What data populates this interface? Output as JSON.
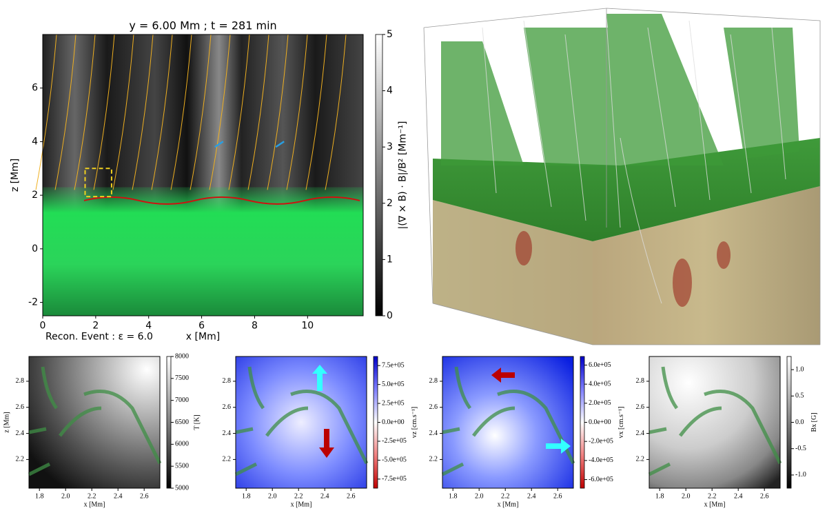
{
  "chart_data": [
    {
      "type": "heatmap",
      "title": "y = 6.00 Mm ; t = 281 min",
      "xlabel": "x [Mm]",
      "ylabel": "z [Mm]",
      "xlim": [
        0,
        12.1
      ],
      "ylim": [
        -2.5,
        8
      ],
      "xticks": [
        0,
        2,
        4,
        6,
        8,
        10
      ],
      "yticks": [
        -2,
        0,
        2,
        4,
        6
      ],
      "annotation": "Recon. Event : ε = 6.0",
      "colorbar": {
        "label": "|(∇ × B) · B|/B² [Mm⁻¹]",
        "colormap": "gray",
        "lim": [
          0,
          5
        ],
        "ticks": [
          0,
          1,
          2,
          3,
          4,
          5
        ]
      }
    },
    {
      "type": "heatmap",
      "xlabel": "x [Mm]",
      "ylabel": "z [Mm]",
      "xlim": [
        1.72,
        2.72
      ],
      "ylim": [
        1.98,
        2.99
      ],
      "xticks": [
        1.8,
        {
          "value": 2,
          "label": "2.0"
        },
        2.2,
        2.4,
        2.6
      ],
      "yticks": [
        2.2,
        2.4,
        2.6,
        2.8
      ],
      "colorbar": {
        "label": "T [K]",
        "colormap": "gray",
        "lim": [
          5000,
          8000
        ],
        "ticks": [
          5000,
          5500,
          6000,
          6500,
          7000,
          7500,
          8000
        ]
      }
    },
    {
      "type": "heatmap",
      "xlabel": "x [Mm]",
      "xlim": [
        1.72,
        2.72
      ],
      "ylim": [
        1.98,
        2.99
      ],
      "xticks": [
        1.8,
        {
          "value": 2,
          "label": "2.0"
        },
        2.2,
        2.4,
        2.6
      ],
      "yticks": [
        2.2,
        2.4,
        2.6,
        2.8
      ],
      "colorbar": {
        "label": "vz [cm.s⁻¹]",
        "colormap": "bwr",
        "lim": [
          -870000,
          870000
        ],
        "ticks": [
          {
            "value": -750000,
            "label": "-7.5e+05"
          },
          {
            "value": -500000,
            "label": "-5.0e+05"
          },
          {
            "value": -250000,
            "label": "-2.5e+05"
          },
          {
            "value": 0,
            "label": "0.0e+00"
          },
          {
            "value": 250000,
            "label": "2.5e+05"
          },
          {
            "value": 500000,
            "label": "5.0e+05"
          },
          {
            "value": 750000,
            "label": "7.5e+05"
          }
        ]
      }
    },
    {
      "type": "heatmap",
      "xlabel": "x [Mm]",
      "xlim": [
        1.72,
        2.72
      ],
      "ylim": [
        1.98,
        2.99
      ],
      "xticks": [
        1.8,
        {
          "value": 2,
          "label": "2.0"
        },
        2.2,
        2.4,
        2.6
      ],
      "yticks": [
        2.2,
        2.4,
        2.6,
        2.8
      ],
      "colorbar": {
        "label": "vx [cm.s⁻¹]",
        "colormap": "bwr",
        "lim": [
          -690000,
          690000
        ],
        "ticks": [
          {
            "value": -600000,
            "label": "-6.0e+05"
          },
          {
            "value": -400000,
            "label": "-4.0e+05"
          },
          {
            "value": -200000,
            "label": "-2.0e+05"
          },
          {
            "value": 0,
            "label": "0.0e+00"
          },
          {
            "value": 200000,
            "label": "2.0e+05"
          },
          {
            "value": 400000,
            "label": "4.0e+05"
          },
          {
            "value": 600000,
            "label": "6.0e+05"
          }
        ]
      }
    },
    {
      "type": "heatmap",
      "xlabel": "x [Mm]",
      "xlim": [
        1.72,
        2.72
      ],
      "ylim": [
        1.98,
        2.99
      ],
      "xticks": [
        1.8,
        {
          "value": 2,
          "label": "2.0"
        },
        2.2,
        2.4,
        2.6
      ],
      "yticks": [
        2.2,
        2.4,
        2.6,
        2.8
      ],
      "colorbar": {
        "label": "Bx [G]",
        "colormap": "gray",
        "lim": [
          -1.25,
          1.25
        ],
        "ticks": [
          {
            "value": -1,
            "label": "-1.0"
          },
          -0.5,
          {
            "value": 0,
            "label": "0.0"
          },
          0.5,
          {
            "value": 1,
            "label": "1.0"
          }
        ]
      }
    }
  ]
}
